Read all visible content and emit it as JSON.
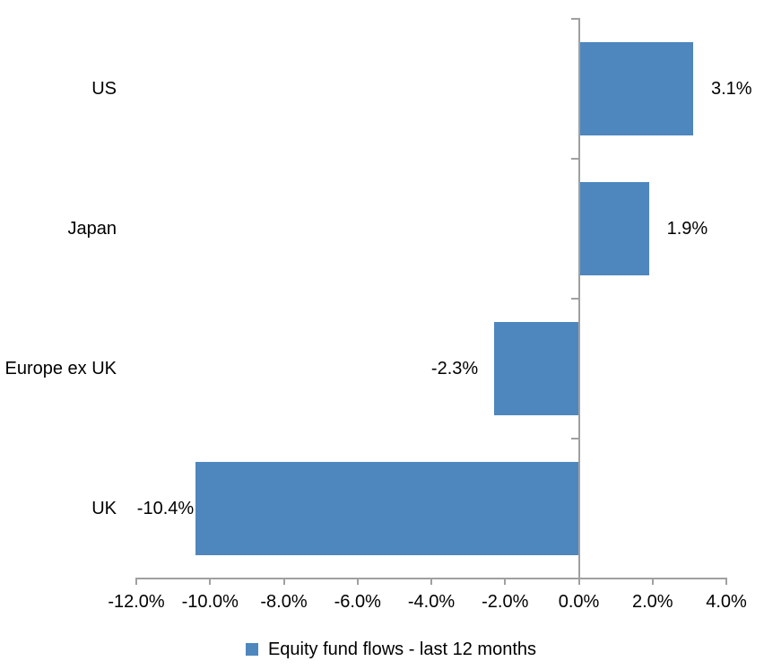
{
  "chart_data": {
    "type": "bar",
    "orientation": "horizontal",
    "title": "",
    "categories": [
      "US",
      "Japan",
      "Europe ex UK",
      "UK"
    ],
    "series": [
      {
        "name": "Equity fund flows - last 12 months",
        "values": [
          3.1,
          1.9,
          -2.3,
          -10.4
        ]
      }
    ],
    "value_labels": [
      "3.1%",
      "1.9%",
      "-2.3%",
      "-10.4%"
    ],
    "xlim": [
      -12,
      4
    ],
    "x_tick_values": [
      -12,
      -10,
      -8,
      -6,
      -4,
      -2,
      0,
      2,
      4
    ],
    "x_tick_labels": [
      "-12.0%",
      "-10.0%",
      "-8.0%",
      "-6.0%",
      "-4.0%",
      "-2.0%",
      "0.0%",
      "2.0%",
      "4.0%"
    ],
    "grid": false,
    "legend": {
      "position": "bottom",
      "label": "Equity fund flows - last 12 months"
    },
    "colors": {
      "bar": "#4E87BE",
      "axis": "#A0A0A0",
      "text": "#000000",
      "background": "#FFFFFF"
    }
  }
}
